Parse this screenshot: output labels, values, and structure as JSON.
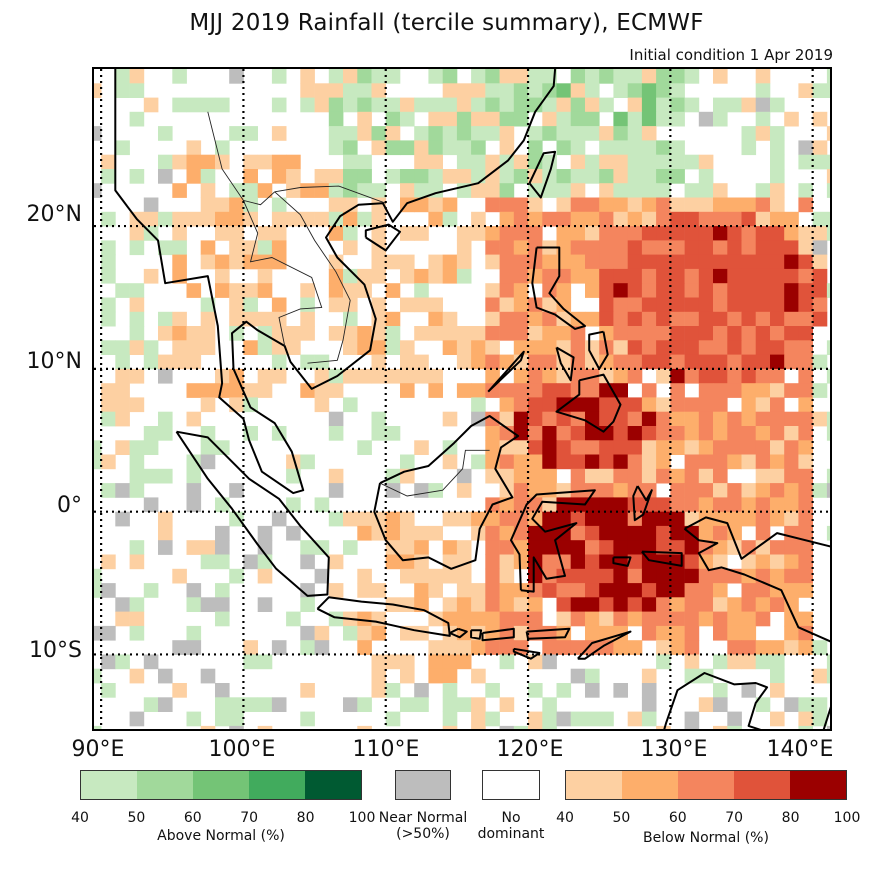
{
  "title": "MJJ 2019 Rainfall (tercile summary), ECMWF",
  "subtitle": "Initial condition 1 Apr 2019",
  "map": {
    "lon_range": [
      89.5,
      141.5
    ],
    "lat_range": [
      -15.5,
      31
    ],
    "lat_labels": [
      "20°N",
      "10°N",
      "0°",
      "10°S"
    ],
    "lat_values": [
      20,
      10,
      0,
      -10
    ],
    "lon_labels": [
      "90°E",
      "100°E",
      "110°E",
      "120°E",
      "130°E",
      "140°E"
    ],
    "lon_values": [
      90,
      100,
      110,
      120,
      130,
      140
    ]
  },
  "colors": {
    "above": [
      "#c7e9c0",
      "#a1d99b",
      "#74c476",
      "#41ab5d",
      "#005a32"
    ],
    "below": [
      "#fdd0a2",
      "#fdae6b",
      "#f4855e",
      "#e0533a",
      "#9b0000"
    ],
    "near_normal": "#bdbdbd",
    "no_dominant": "#ffffff"
  },
  "legend": {
    "above": {
      "label": "Above Normal (%)",
      "ticks": [
        "40",
        "50",
        "60",
        "70",
        "80",
        "100"
      ]
    },
    "near_normal": {
      "label_line1": "Near Normal",
      "label_line2": "(>50%)"
    },
    "no_dominant": {
      "label_line1": "No",
      "label_line2": "dominant"
    },
    "below": {
      "label": "Below Normal (%)",
      "ticks": [
        "40",
        "50",
        "60",
        "70",
        "80",
        "100"
      ]
    }
  }
}
